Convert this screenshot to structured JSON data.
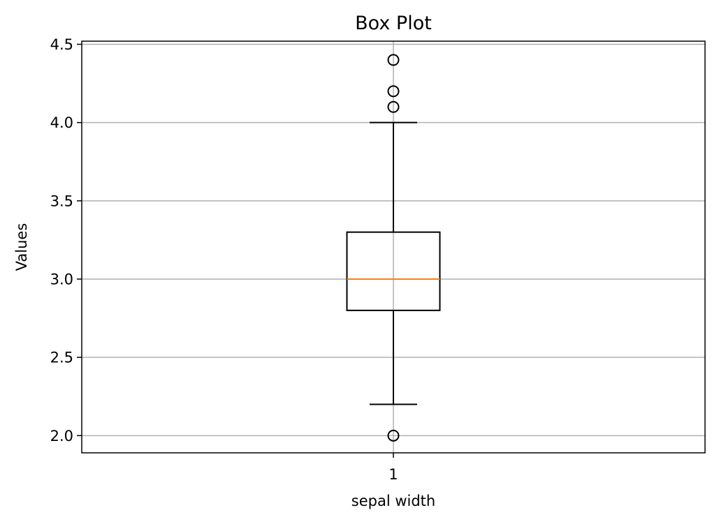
{
  "chart_data": {
    "type": "box",
    "title": "Box Plot",
    "xlabel": "sepal width",
    "ylabel": "Values",
    "categories": [
      "1"
    ],
    "ylim": [
      1.89,
      4.52
    ],
    "yticks": [
      "2.0",
      "2.5",
      "3.0",
      "3.5",
      "4.0",
      "4.5"
    ],
    "grid": true,
    "boxes": [
      {
        "category": "1",
        "whisker_low": 2.2,
        "q1": 2.8,
        "median": 3.0,
        "q3": 3.3,
        "whisker_high": 4.0,
        "outliers": [
          2.0,
          4.1,
          4.2,
          4.4
        ]
      }
    ],
    "colors": {
      "box": "#000000",
      "median": "#ff7f0e",
      "grid": "#b0b0b0"
    }
  }
}
